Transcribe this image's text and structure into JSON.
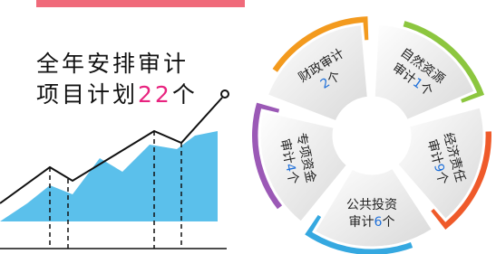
{
  "header": {
    "line1": "全年安排审计",
    "line2": "项目计划",
    "count": "22",
    "unit": "个"
  },
  "nodes": [
    {
      "line1": "财政审计",
      "count": "2",
      "unit": "个",
      "color": "#f39a1e"
    },
    {
      "line1": "自然资源",
      "line2": "审计",
      "count": "1",
      "unit": "个",
      "color": "#8cc63f"
    },
    {
      "line1": "经济责任",
      "line2": "审计",
      "count": "9",
      "unit": "个",
      "color": "#ef5a2a"
    },
    {
      "line1": "公共投资",
      "line2": "审计",
      "count": "6",
      "unit": "个",
      "color": "#35a8e0"
    },
    {
      "line1": "专项资金",
      "line2": "审计",
      "count": "4",
      "unit": "个",
      "color": "#9b59b6"
    }
  ]
}
